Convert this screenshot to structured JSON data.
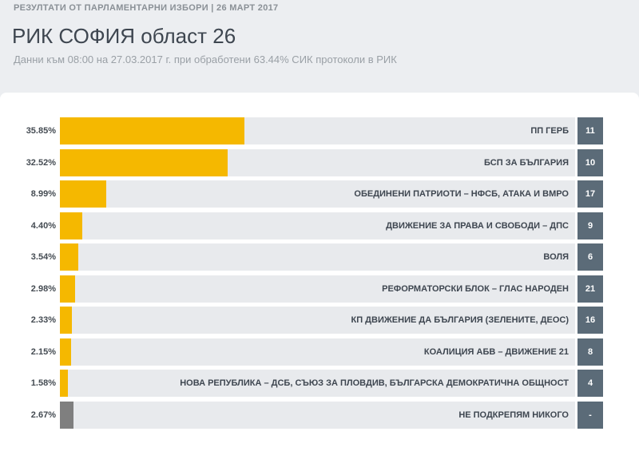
{
  "header": {
    "kicker": "РЕЗУЛТАТИ ОТ ПАРЛАМЕНТАРНИ ИЗБОРИ | 26 МАРТ 2017",
    "title": "РИК СОФИЯ област 26",
    "subtitle": "Данни към 08:00 на 27.03.2017 г. при обработени 63.44% СИК протоколи в РИК"
  },
  "colors": {
    "bar": "#f5b800",
    "bar_none": "#7f7f7f",
    "track": "#e8eaed",
    "seats_bg": "#5b6b78"
  },
  "chart_data": {
    "type": "bar",
    "orientation": "horizontal",
    "title": "",
    "xlim": [
      0,
      100
    ],
    "rows": [
      {
        "party": "ПП ГЕРБ",
        "percent": 35.85,
        "percent_label": "35.85%",
        "seats": "11"
      },
      {
        "party": "БСП ЗА БЪЛГАРИЯ",
        "percent": 32.52,
        "percent_label": "32.52%",
        "seats": "10"
      },
      {
        "party": "ОБЕДИНЕНИ ПАТРИОТИ – НФСБ, АТАКА И ВМРО",
        "percent": 8.99,
        "percent_label": "8.99%",
        "seats": "17"
      },
      {
        "party": "ДВИЖЕНИЕ ЗА ПРАВА И СВОБОДИ – ДПС",
        "percent": 4.4,
        "percent_label": "4.40%",
        "seats": "9"
      },
      {
        "party": "ВОЛЯ",
        "percent": 3.54,
        "percent_label": "3.54%",
        "seats": "6"
      },
      {
        "party": "РЕФОРМАТОРСКИ БЛОК – ГЛАС НАРОДЕН",
        "percent": 2.98,
        "percent_label": "2.98%",
        "seats": "21"
      },
      {
        "party": "КП ДВИЖЕНИЕ ДА БЪЛГАРИЯ (ЗЕЛЕНИТЕ, ДЕОС)",
        "percent": 2.33,
        "percent_label": "2.33%",
        "seats": "16"
      },
      {
        "party": "КОАЛИЦИЯ АБВ – ДВИЖЕНИЕ 21",
        "percent": 2.15,
        "percent_label": "2.15%",
        "seats": "8"
      },
      {
        "party": "НОВА РЕПУБЛИКА – ДСБ, СЪЮЗ ЗА ПЛОВДИВ, БЪЛГАРСКА ДЕМОКРАТИЧНА ОБЩНОСТ",
        "percent": 1.58,
        "percent_label": "1.58%",
        "seats": "4"
      },
      {
        "party": "НЕ ПОДКРЕПЯМ НИКОГО",
        "percent": 2.67,
        "percent_label": "2.67%",
        "seats": "-",
        "is_none": true
      }
    ]
  }
}
